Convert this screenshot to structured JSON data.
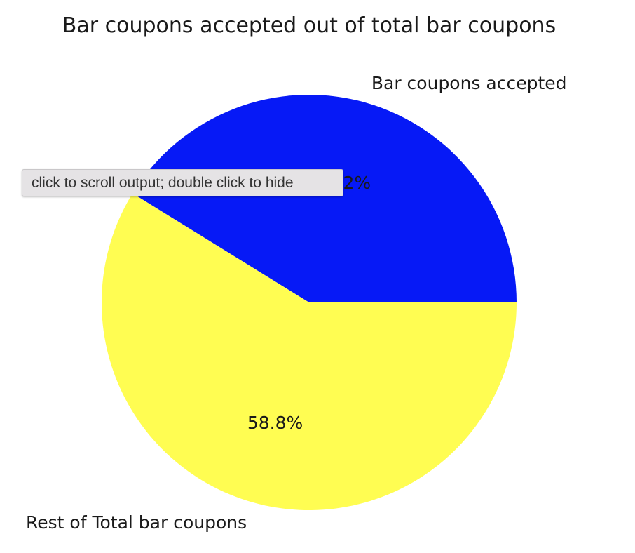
{
  "chart_data": {
    "type": "pie",
    "title": "Bar coupons accepted out of total bar coupons",
    "slices": [
      {
        "label": "Bar coupons accepted",
        "value": 41.2,
        "pct_label": "41.2%",
        "color": "#0619f6"
      },
      {
        "label": "Rest of Total bar coupons",
        "value": 58.8,
        "pct_label": "58.8%",
        "color": "#fffd52"
      }
    ]
  },
  "tooltip": {
    "text": "click to scroll output; double click to hide"
  }
}
